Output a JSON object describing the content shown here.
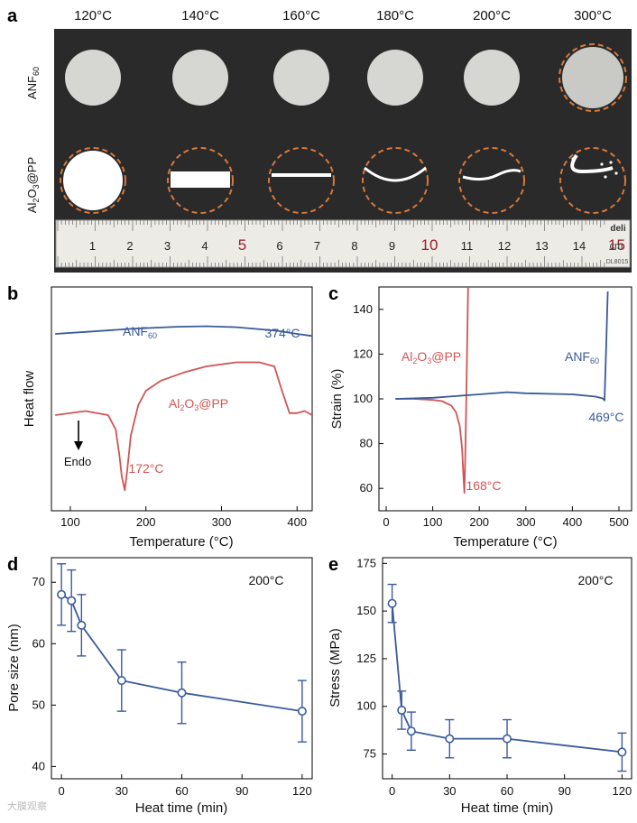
{
  "panel_a": {
    "letter": "a",
    "temperatures": [
      "120°C",
      "140°C",
      "160°C",
      "180°C",
      "200°C",
      "300°C"
    ],
    "row_labels": {
      "anf": "ANF",
      "anf_sub": "60",
      "al_a": "Al",
      "al_sub1": "2",
      "al_b": "O",
      "al_sub2": "3",
      "al_c": "@PP"
    },
    "ruler": {
      "numbers": [
        "1",
        "2",
        "3",
        "4",
        "5",
        "6",
        "7",
        "8",
        "9",
        "10",
        "11",
        "12",
        "13",
        "14",
        "15"
      ],
      "unit": "cm",
      "brand": "deli",
      "model": "DL8015"
    },
    "colors": {
      "background": "#2a2a2a",
      "dash_circle": "#d9783a"
    }
  },
  "chart_data": [
    {
      "panel": "b",
      "type": "line",
      "ylabel": "Heat flow",
      "xlabel": "Temperature (°C)",
      "xlim": [
        75,
        420
      ],
      "xticks": [
        "100",
        "200",
        "300",
        "400"
      ],
      "endo_label": "Endo",
      "series": [
        {
          "name_main": "ANF",
          "name_sub": "60",
          "color": "#3a5a99",
          "x": [
            80,
            120,
            180,
            240,
            280,
            320,
            360,
            374,
            400,
            420
          ],
          "y": [
            0.8,
            0.81,
            0.825,
            0.835,
            0.838,
            0.833,
            0.82,
            0.815,
            0.8,
            0.79
          ]
        },
        {
          "name_main": "Al",
          "name_sub1": "2",
          "name_mid": "O",
          "name_sub2": "3",
          "name_end": "@PP",
          "color": "#d05555",
          "x": [
            80,
            120,
            150,
            160,
            165,
            168,
            172,
            175,
            180,
            190,
            200,
            220,
            250,
            280,
            320,
            350,
            370,
            380,
            390,
            400,
            410,
            420
          ],
          "y": [
            0.4,
            0.42,
            0.4,
            0.33,
            0.2,
            0.1,
            0.03,
            0.12,
            0.3,
            0.45,
            0.52,
            0.57,
            0.61,
            0.64,
            0.66,
            0.66,
            0.64,
            0.52,
            0.41,
            0.41,
            0.42,
            0.4
          ]
        }
      ],
      "annotations": [
        {
          "text": "374°C",
          "x": 374,
          "color": "#3a5a99"
        },
        {
          "text": "172°C",
          "x": 172,
          "color": "#d05555"
        }
      ]
    },
    {
      "panel": "c",
      "type": "line",
      "ylabel": "Strain (%)",
      "xlabel": "Temperature (°C)",
      "xlim": [
        0,
        500
      ],
      "ylim": [
        50,
        150
      ],
      "xticks": [
        0,
        100,
        200,
        300,
        400,
        500
      ],
      "yticks": [
        60,
        80,
        100,
        120,
        140
      ],
      "series": [
        {
          "name_main": "Al",
          "name_sub1": "2",
          "name_mid": "O",
          "name_sub2": "3",
          "name_end": "@PP",
          "color": "#d05555",
          "x": [
            20,
            60,
            100,
            120,
            140,
            150,
            158,
            163,
            166,
            168,
            170,
            172,
            174,
            176
          ],
          "y": [
            100,
            100,
            99.5,
            99,
            97,
            94,
            88,
            78,
            65,
            58,
            75,
            100,
            125,
            150
          ]
        },
        {
          "name_main": "ANF",
          "name_sub": "60",
          "color": "#3a5a99",
          "x": [
            20,
            100,
            200,
            260,
            300,
            400,
            450,
            465,
            469,
            472,
            476
          ],
          "y": [
            100,
            100.5,
            102,
            103,
            102.5,
            102,
            101,
            100.2,
            99.3,
            120,
            148
          ]
        }
      ],
      "annotations": [
        {
          "text": "168°C",
          "x": 168,
          "y": 58,
          "color": "#d05555"
        },
        {
          "text": "469°C",
          "x": 469,
          "y": 99.3,
          "color": "#3a5a99"
        }
      ]
    },
    {
      "panel": "d",
      "type": "line",
      "ylabel": "Pore size (nm)",
      "xlabel": "Heat time (min)",
      "condition": "200°C",
      "xlim": [
        -5,
        125
      ],
      "ylim": [
        38,
        74
      ],
      "xticks": [
        0,
        30,
        60,
        90,
        120
      ],
      "yticks": [
        40,
        50,
        60,
        70
      ],
      "color": "#3a5a99",
      "x": [
        0,
        5,
        10,
        30,
        60,
        120
      ],
      "values": [
        68,
        67,
        63,
        54,
        52,
        49
      ],
      "errors": [
        5,
        5,
        5,
        5,
        5,
        5
      ]
    },
    {
      "panel": "e",
      "type": "line",
      "ylabel": "Stress (MPa)",
      "xlabel": "Heat time (min)",
      "condition": "200°C",
      "xlim": [
        -5,
        125
      ],
      "ylim": [
        62,
        178
      ],
      "xticks": [
        0,
        30,
        60,
        90,
        120
      ],
      "yticks": [
        75,
        100,
        125,
        150,
        175
      ],
      "color": "#3a5a99",
      "x": [
        0,
        5,
        10,
        30,
        60,
        120
      ],
      "values": [
        154,
        98,
        87,
        83,
        83,
        76
      ],
      "errors": [
        10,
        10,
        10,
        10,
        10,
        10
      ]
    }
  ],
  "watermark": "大膜观察"
}
